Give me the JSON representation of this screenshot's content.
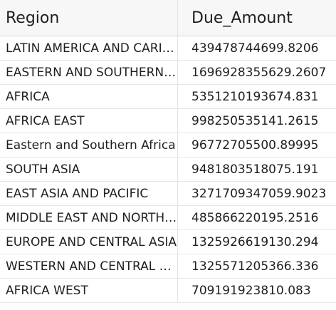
{
  "table": {
    "columns": [
      "Region",
      "Due_Amount"
    ],
    "rows": [
      [
        "LATIN AMERICA AND CARIBBEAN",
        "439478744699.8206"
      ],
      [
        "EASTERN AND SOUTHERN AFRICA",
        "1696928355629.2607"
      ],
      [
        "AFRICA",
        "5351210193674.831"
      ],
      [
        "AFRICA EAST",
        "998250535141.2615"
      ],
      [
        "Eastern and Southern Africa",
        "96772705500.89995"
      ],
      [
        "SOUTH ASIA",
        "9481803518075.191"
      ],
      [
        "EAST ASIA AND PACIFIC",
        "3271709347059.9023"
      ],
      [
        "MIDDLE EAST AND NORTH AFRICA",
        "485866220195.2516"
      ],
      [
        "EUROPE AND CENTRAL ASIA",
        "1325926619130.294"
      ],
      [
        "WESTERN AND CENTRAL AFRICA",
        "1325571205366.336"
      ],
      [
        "AFRICA WEST",
        "709191923810.083"
      ]
    ]
  }
}
